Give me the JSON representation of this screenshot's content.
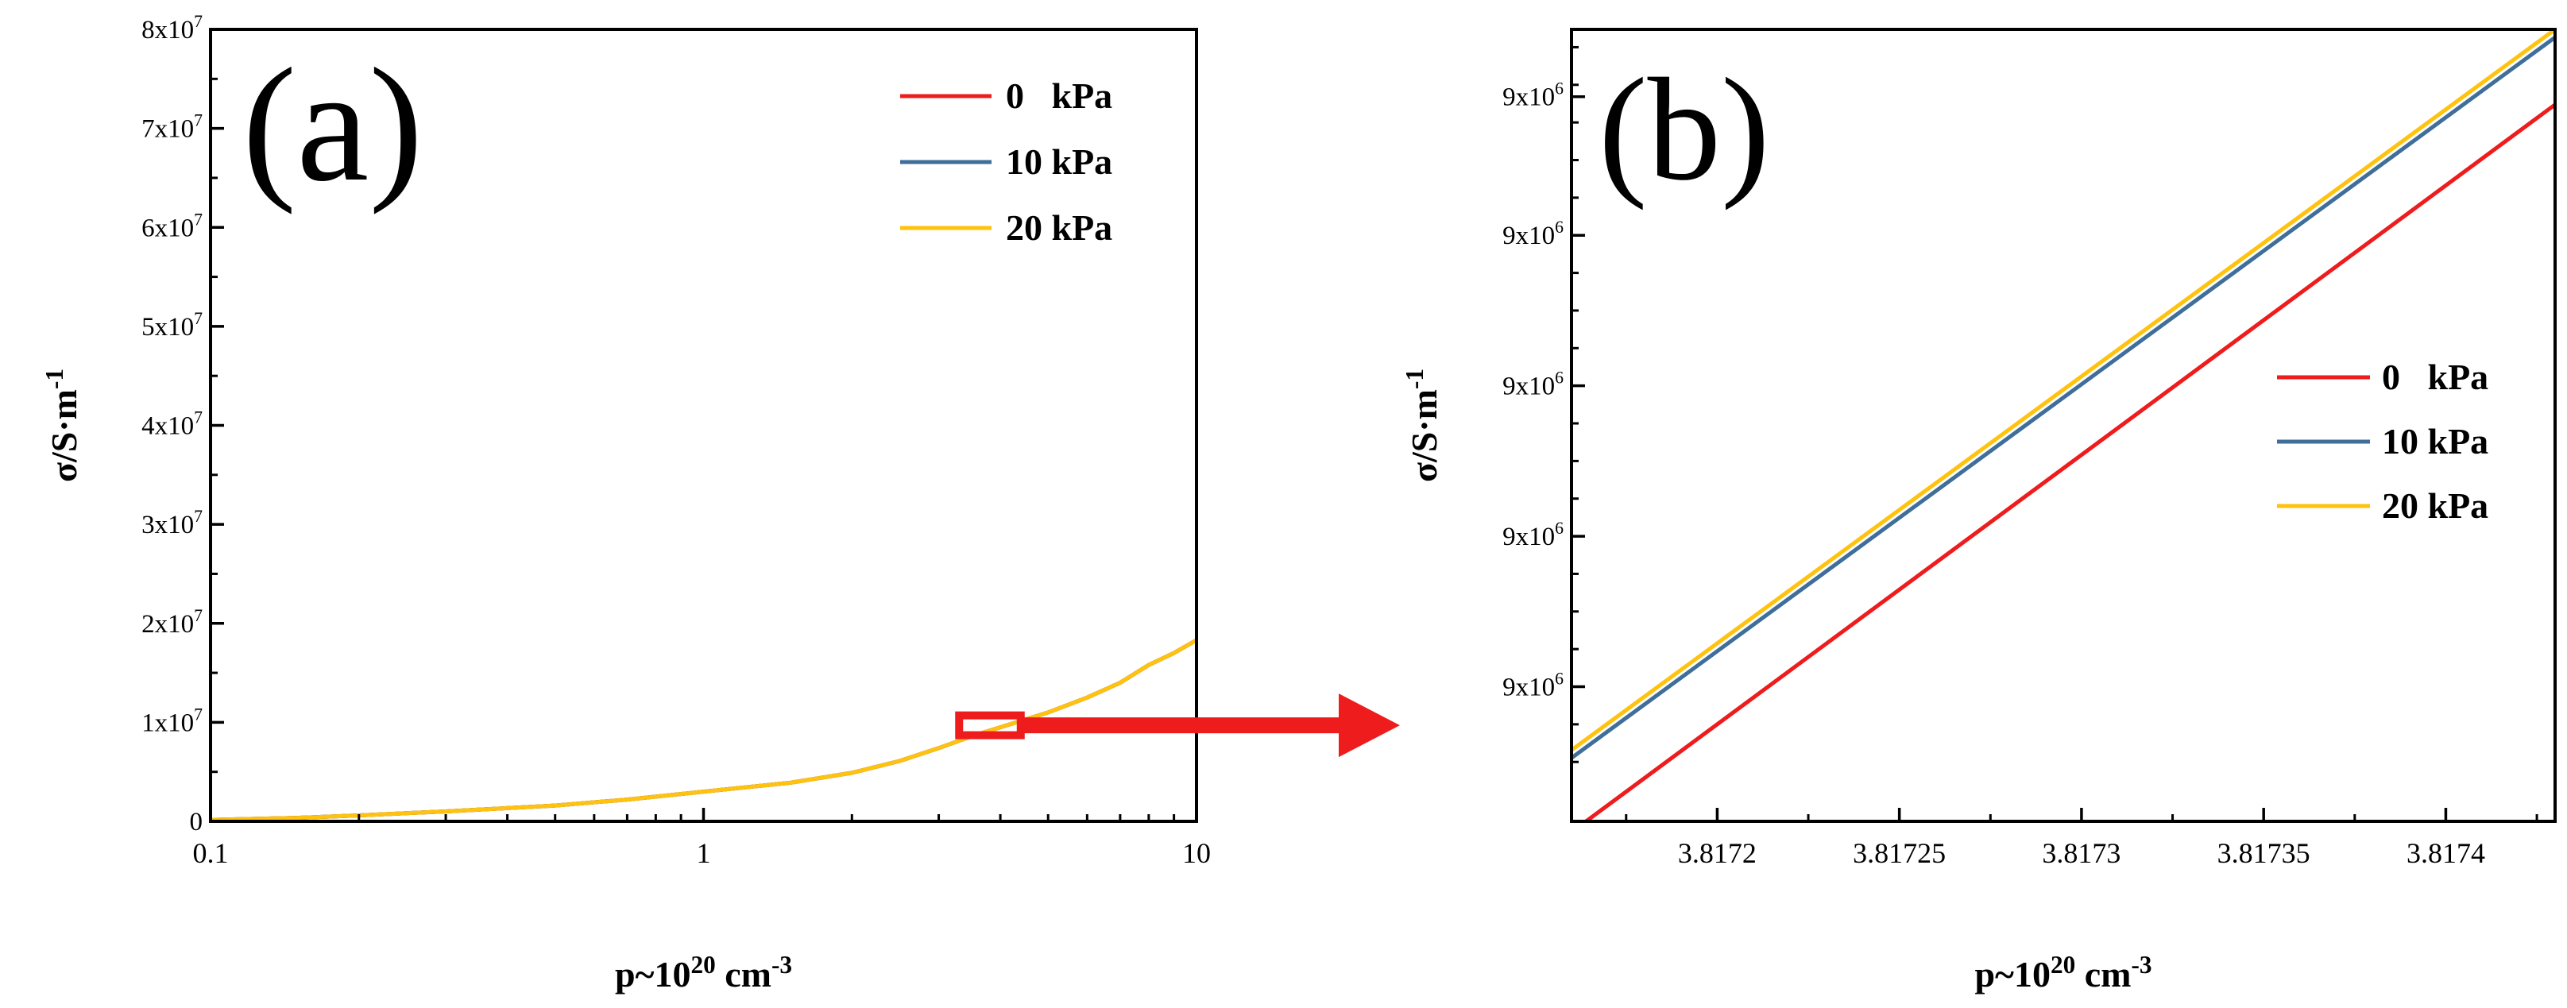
{
  "colors": {
    "c0": "#ee1c1c",
    "c10": "#3f6e9a",
    "c20": "#ffc20e",
    "zoom": "#ee1c1c",
    "axis": "#000000"
  },
  "chart_data": [
    {
      "panel": "(a)",
      "type": "line",
      "xscale": "log",
      "xlim": [
        0.1,
        10
      ],
      "ylim": [
        0,
        80000000
      ],
      "xticks": [
        0.1,
        1,
        10
      ],
      "xtick_labels": [
        "0.1",
        "1",
        "10"
      ],
      "yticks": [
        0,
        10000000,
        20000000,
        30000000,
        40000000,
        50000000,
        60000000,
        70000000,
        80000000
      ],
      "ytick_labels": [
        {
          "main": "0",
          "exp": ""
        },
        {
          "main": "1x10",
          "exp": "7"
        },
        {
          "main": "2x10",
          "exp": "7"
        },
        {
          "main": "3x10",
          "exp": "7"
        },
        {
          "main": "4x10",
          "exp": "7"
        },
        {
          "main": "5x10",
          "exp": "7"
        },
        {
          "main": "6x10",
          "exp": "7"
        },
        {
          "main": "7x10",
          "exp": "7"
        },
        {
          "main": "8x10",
          "exp": "7"
        }
      ],
      "xlabel": {
        "main": "p~10",
        "exp1": "20",
        "mid": " cm",
        "exp2": "-3"
      },
      "ylabel": {
        "main": "σ/S·m",
        "exp": "-1"
      },
      "legend": [
        {
          "label": "0   kPa",
          "color": "#ee1c1c"
        },
        {
          "label": "10 kPa",
          "color": "#3f6e9a"
        },
        {
          "label": "20 kPa",
          "color": "#ffc20e"
        }
      ],
      "series": [
        {
          "name": "0 kPa",
          "color": "#ee1c1c",
          "x": [
            0.1,
            0.15,
            0.2,
            0.3,
            0.5,
            0.7,
            1,
            1.5,
            2,
            2.5,
            3,
            3.5,
            4,
            5,
            6,
            7,
            8,
            9,
            10
          ],
          "y": [
            150000,
            350000,
            600000,
            1000000,
            1600000,
            2200000,
            3000000,
            3900000,
            4900000,
            6100000,
            7400000,
            8600000,
            9500000,
            11000000,
            12500000,
            14000000,
            15800000,
            17000000,
            18300000
          ]
        },
        {
          "name": "10 kPa",
          "color": "#3f6e9a",
          "x": [
            0.1,
            0.15,
            0.2,
            0.3,
            0.5,
            0.7,
            1,
            1.5,
            2,
            2.5,
            3,
            3.5,
            4,
            5,
            6,
            7,
            8,
            9,
            10
          ],
          "y": [
            150000,
            350000,
            600000,
            1000000,
            1600000,
            2200000,
            3000000,
            3900000,
            4900000,
            6100000,
            7400000,
            8600000,
            9500000,
            11000000,
            12500000,
            14000000,
            15800000,
            17000000,
            18300000
          ]
        },
        {
          "name": "20 kPa",
          "color": "#ffc20e",
          "x": [
            0.1,
            0.15,
            0.2,
            0.3,
            0.5,
            0.7,
            1,
            1.5,
            2,
            2.5,
            3,
            3.5,
            4,
            5,
            6,
            7,
            8,
            9,
            10
          ],
          "y": [
            150000,
            350000,
            600000,
            1000000,
            1600000,
            2200000,
            3000000,
            3900000,
            4900000,
            6100000,
            7400000,
            8600000,
            9500000,
            11000000,
            12500000,
            14000000,
            15800000,
            17000000,
            18300000
          ]
        }
      ],
      "zoom_region": {
        "x": [
          3.3,
          4.4
        ],
        "y": [
          8700000,
          10700000
        ]
      }
    },
    {
      "panel": "(b)",
      "type": "line",
      "xscale": "linear",
      "xlim": [
        3.81716,
        3.81743
      ],
      "ylim": [
        0,
        1
      ],
      "xticks": [
        3.8172,
        3.81725,
        3.8173,
        3.81735,
        3.8174
      ],
      "xtick_labels": [
        "3.8172",
        "3.81725",
        "3.8173",
        "3.81735",
        "3.8174"
      ],
      "yticks": [
        0.17,
        0.36,
        0.55,
        0.74,
        0.915
      ],
      "ytick_labels": [
        {
          "main": "9x10",
          "exp": "6"
        },
        {
          "main": "9x10",
          "exp": "6"
        },
        {
          "main": "9x10",
          "exp": "6"
        },
        {
          "main": "9x10",
          "exp": "6"
        },
        {
          "main": "9x10",
          "exp": "6"
        }
      ],
      "xlabel": {
        "main": "p~10",
        "exp1": "20",
        "mid": " cm",
        "exp2": "-3"
      },
      "ylabel": {
        "main": "σ/S·m",
        "exp": "-1"
      },
      "legend": [
        {
          "label": "0   kPa",
          "color": "#ee1c1c"
        },
        {
          "label": "10 kPa",
          "color": "#3f6e9a"
        },
        {
          "label": "20 kPa",
          "color": "#ffc20e"
        }
      ],
      "series": [
        {
          "name": "0 kPa",
          "color": "#ee1c1c",
          "x": [
            3.817164,
            3.81743
          ],
          "y": [
            0.0,
            0.905
          ]
        },
        {
          "name": "10 kPa",
          "color": "#3f6e9a",
          "x": [
            3.81716,
            3.81743
          ],
          "y": [
            0.08,
            0.99
          ]
        },
        {
          "name": "20 kPa",
          "color": "#ffc20e",
          "x": [
            3.81716,
            3.81743
          ],
          "y": [
            0.09,
            1.0
          ]
        }
      ]
    }
  ]
}
